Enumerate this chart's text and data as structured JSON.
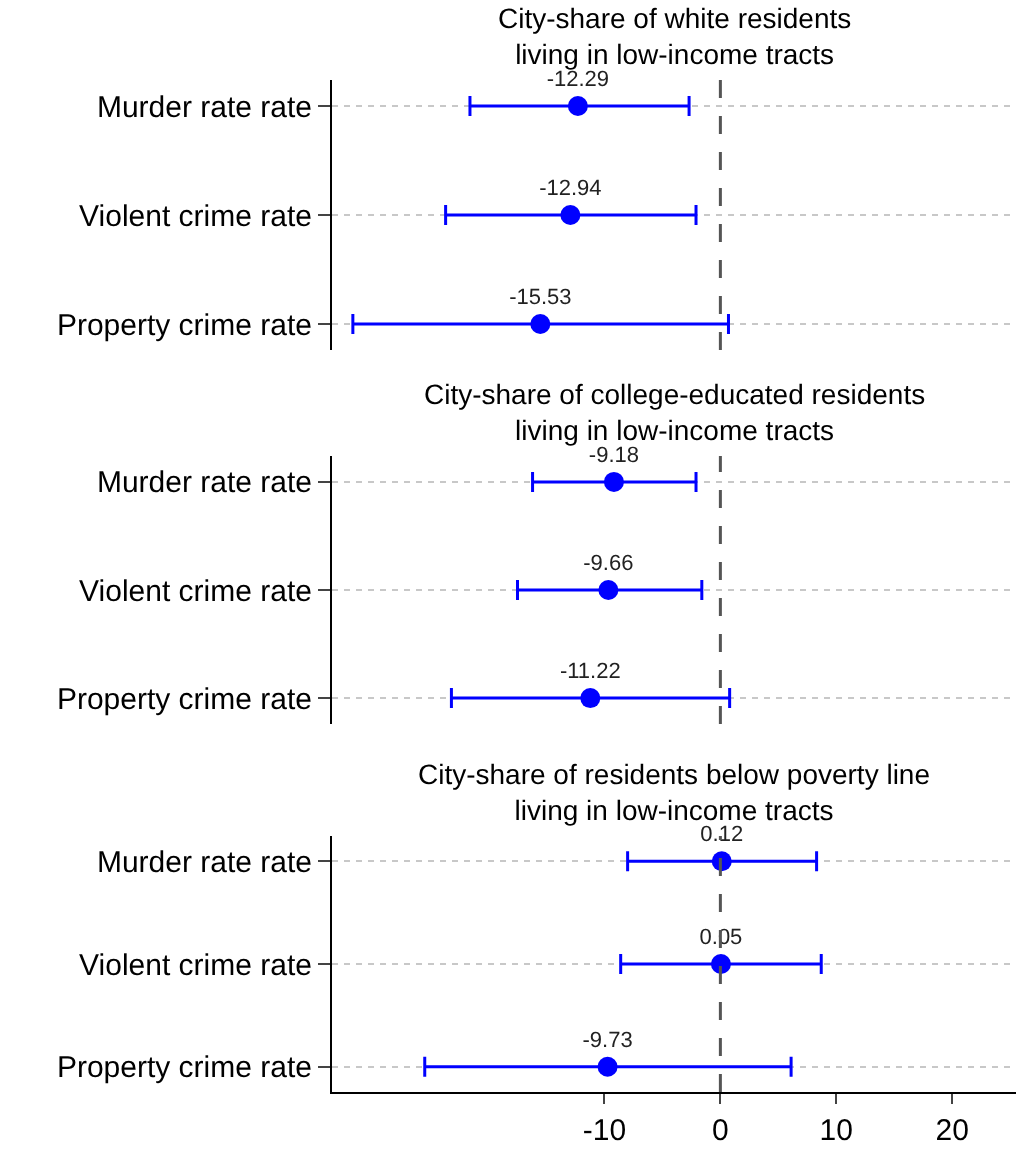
{
  "chart_data": [
    {
      "type": "scatter",
      "title": "City-share of white residents\nliving in low-income tracts",
      "categories": [
        "Murder rate rate",
        "Violent crime rate",
        "Property crime rate"
      ],
      "orientation": "horizontal",
      "values": [
        -12.29,
        -12.94,
        -15.53
      ],
      "errors": [
        [
          -21.6,
          -2.7
        ],
        [
          -23.7,
          -2.1
        ],
        [
          -31.7,
          0.7
        ]
      ],
      "color": "#0000ff",
      "marker": "circle",
      "data_labels": true,
      "xlim": [
        -33.5,
        25.5
      ],
      "xticks": [
        -10,
        0,
        10,
        20
      ],
      "tick_labels": "y",
      "grid": "y",
      "ref_lines": [
        {
          "axis": "x",
          "value": 0,
          "color": "#555555",
          "line_style": "dashed"
        }
      ]
    },
    {
      "type": "scatter",
      "title": "City-share of college-educated residents\nliving in low-income tracts",
      "categories": [
        "Murder rate rate",
        "Violent crime rate",
        "Property crime rate"
      ],
      "orientation": "horizontal",
      "values": [
        -9.18,
        -9.66,
        -11.22
      ],
      "errors": [
        [
          -16.2,
          -2.1
        ],
        [
          -17.5,
          -1.6
        ],
        [
          -23.2,
          0.8
        ]
      ],
      "color": "#0000ff",
      "marker": "circle",
      "data_labels": true,
      "xlim": [
        -33.5,
        25.5
      ],
      "xticks": [
        -10,
        0,
        10,
        20
      ],
      "tick_labels": "y",
      "grid": "y",
      "ref_lines": [
        {
          "axis": "x",
          "value": 0,
          "color": "#555555",
          "line_style": "dashed"
        }
      ]
    },
    {
      "type": "scatter",
      "title": "City-share of residents below poverty line\nliving in low-income tracts",
      "categories": [
        "Murder rate rate",
        "Violent crime rate",
        "Property crime rate"
      ],
      "orientation": "horizontal",
      "values": [
        0.12,
        0.05,
        -9.73
      ],
      "errors": [
        [
          -8.0,
          8.3
        ],
        [
          -8.6,
          8.7
        ],
        [
          -25.5,
          6.1
        ]
      ],
      "color": "#0000ff",
      "marker": "circle",
      "data_labels": true,
      "xlim": [
        -33.5,
        25.5
      ],
      "xticks": [
        -10,
        0,
        10,
        20
      ],
      "grid": "y",
      "ref_lines": [
        {
          "axis": "x",
          "value": 0,
          "color": "#555555",
          "line_style": "dashed"
        }
      ]
    }
  ]
}
